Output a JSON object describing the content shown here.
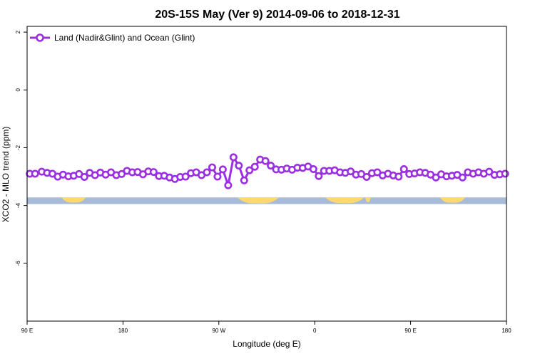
{
  "chart_data": {
    "type": "line",
    "title": "20S-15S May (Ver 9)   2014-09-06 to 2018-12-31",
    "xlabel": "Longitude (deg E)",
    "ylabel": "XCO2 - MLO trend (ppm)",
    "xlim": [
      90,
      450
    ],
    "ylim": [
      -8,
      2.2
    ],
    "x_ticks": [
      {
        "value": 90,
        "label": "90 E"
      },
      {
        "value": 162,
        "label": "180"
      },
      {
        "value": 234,
        "label": "90 W"
      },
      {
        "value": 306,
        "label": "0"
      },
      {
        "value": 378,
        "label": "90 E"
      },
      {
        "value": 450,
        "label": "180"
      }
    ],
    "y_ticks": [
      {
        "value": 2,
        "label": "2"
      },
      {
        "value": 0,
        "label": "0"
      },
      {
        "value": -2,
        "label": "-2"
      },
      {
        "value": -4,
        "label": "-4"
      },
      {
        "value": -6,
        "label": "-6"
      }
    ],
    "legend": {
      "position": "top-left"
    },
    "colors": {
      "series": "#9b30e0",
      "ocean": "#a7bbd9",
      "land": "#ffd970"
    },
    "series": [
      {
        "name": "Land (Nadir&Glint) and Ocean (Glint)",
        "x": [
          92,
          96,
          101,
          105,
          109,
          113,
          117,
          121,
          125,
          129,
          133,
          137,
          141,
          145,
          149,
          153,
          157,
          161,
          165,
          169,
          173,
          177,
          181,
          185,
          189,
          193,
          197,
          201,
          205,
          209,
          213,
          217,
          221,
          225,
          229,
          233,
          237,
          241,
          245,
          249,
          253,
          257,
          261,
          265,
          269,
          273,
          277,
          281,
          285,
          289,
          293,
          297,
          301,
          305,
          309,
          313,
          317,
          321,
          325,
          329,
          333,
          337,
          341,
          345,
          349,
          353,
          357,
          361,
          365,
          369,
          373,
          377,
          381,
          385,
          389,
          393,
          397,
          401,
          405,
          409,
          413,
          417,
          421,
          425,
          429,
          433,
          437,
          441,
          445,
          449
        ],
        "y": [
          -2.9,
          -2.9,
          -2.83,
          -2.87,
          -2.9,
          -3.0,
          -2.93,
          -2.99,
          -2.97,
          -2.91,
          -3.01,
          -2.87,
          -2.95,
          -2.86,
          -2.93,
          -2.85,
          -2.95,
          -2.91,
          -2.8,
          -2.85,
          -2.84,
          -2.92,
          -2.82,
          -2.84,
          -2.98,
          -2.97,
          -3.03,
          -3.08,
          -3.01,
          -3.0,
          -2.88,
          -2.85,
          -2.95,
          -2.85,
          -2.68,
          -3.0,
          -2.75,
          -3.3,
          -2.33,
          -2.62,
          -3.13,
          -2.78,
          -2.66,
          -2.41,
          -2.46,
          -2.62,
          -2.75,
          -2.76,
          -2.72,
          -2.76,
          -2.69,
          -2.7,
          -2.65,
          -2.74,
          -2.98,
          -2.8,
          -2.8,
          -2.78,
          -2.85,
          -2.87,
          -2.82,
          -2.93,
          -2.91,
          -3.01,
          -2.88,
          -2.85,
          -2.96,
          -2.9,
          -2.96,
          -3.0,
          -2.74,
          -2.91,
          -2.89,
          -2.85,
          -2.87,
          -2.93,
          -3.03,
          -2.92,
          -2.99,
          -2.97,
          -2.94,
          -3.03,
          -2.85,
          -2.9,
          -2.85,
          -2.9,
          -2.83,
          -2.94,
          -2.92,
          -2.9
        ]
      }
    ],
    "surface_band": {
      "y_range": [
        -3.95,
        -3.72
      ],
      "land_segments": [
        {
          "x": [
            116,
            134
          ],
          "dip": 0.78
        },
        {
          "x": [
            248,
            279
          ],
          "dip": 0.9
        },
        {
          "x": [
            314,
            343
          ],
          "dip": 0.85
        },
        {
          "x": [
            344,
            348
          ],
          "dip": 0.7
        },
        {
          "x": [
            400,
            419
          ],
          "dip": 0.8
        }
      ]
    }
  }
}
